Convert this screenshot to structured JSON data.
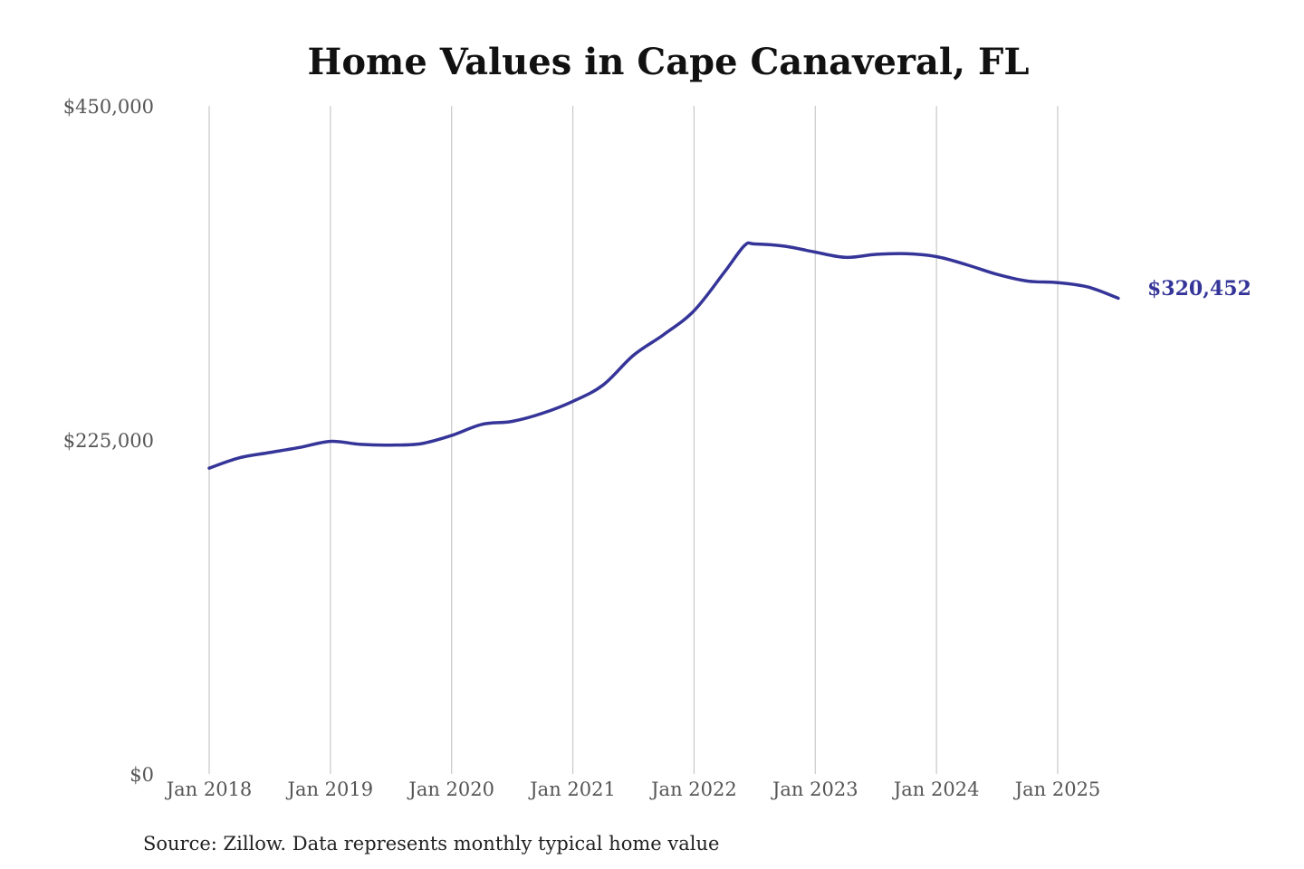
{
  "chart_data": {
    "type": "line",
    "title": "Home Values in Cape Canaveral, FL",
    "source_note": "Source: Zillow. Data represents monthly typical home value",
    "ylim": [
      0,
      450000
    ],
    "y_ticks": [
      {
        "value": 0,
        "label": "$0"
      },
      {
        "value": 225000,
        "label": "$225,000"
      },
      {
        "value": 450000,
        "label": "$450,000"
      }
    ],
    "x_ticks": [
      {
        "value": "2018-01",
        "label": "Jan 2018"
      },
      {
        "value": "2019-01",
        "label": "Jan 2019"
      },
      {
        "value": "2020-01",
        "label": "Jan 2020"
      },
      {
        "value": "2021-01",
        "label": "Jan 2021"
      },
      {
        "value": "2022-01",
        "label": "Jan 2022"
      },
      {
        "value": "2023-01",
        "label": "Jan 2023"
      },
      {
        "value": "2024-01",
        "label": "Jan 2024"
      },
      {
        "value": "2025-01",
        "label": "Jan 2025"
      }
    ],
    "grid": "vertical",
    "series_color": "#353599",
    "end_label": "$320,452",
    "series": [
      {
        "x": [
          "2018-01",
          "2018-04",
          "2018-07",
          "2018-10",
          "2019-01",
          "2019-04",
          "2019-07",
          "2019-10",
          "2020-01",
          "2020-04",
          "2020-07",
          "2020-10",
          "2021-01",
          "2021-04",
          "2021-07",
          "2021-10",
          "2022-01",
          "2022-04",
          "2022-06",
          "2022-07",
          "2022-10",
          "2023-01",
          "2023-04",
          "2023-07",
          "2023-10",
          "2024-01",
          "2024-04",
          "2024-07",
          "2024-10",
          "2025-01",
          "2025-04",
          "2025-07"
        ],
        "values": [
          206000,
          213000,
          216500,
          220000,
          224000,
          222000,
          221500,
          222500,
          228000,
          235500,
          237500,
          243000,
          251000,
          262000,
          282000,
          296000,
          312000,
          338000,
          356000,
          357000,
          355500,
          351500,
          348000,
          350000,
          350500,
          348500,
          343000,
          336500,
          332000,
          331000,
          328000,
          320452
        ]
      }
    ]
  }
}
